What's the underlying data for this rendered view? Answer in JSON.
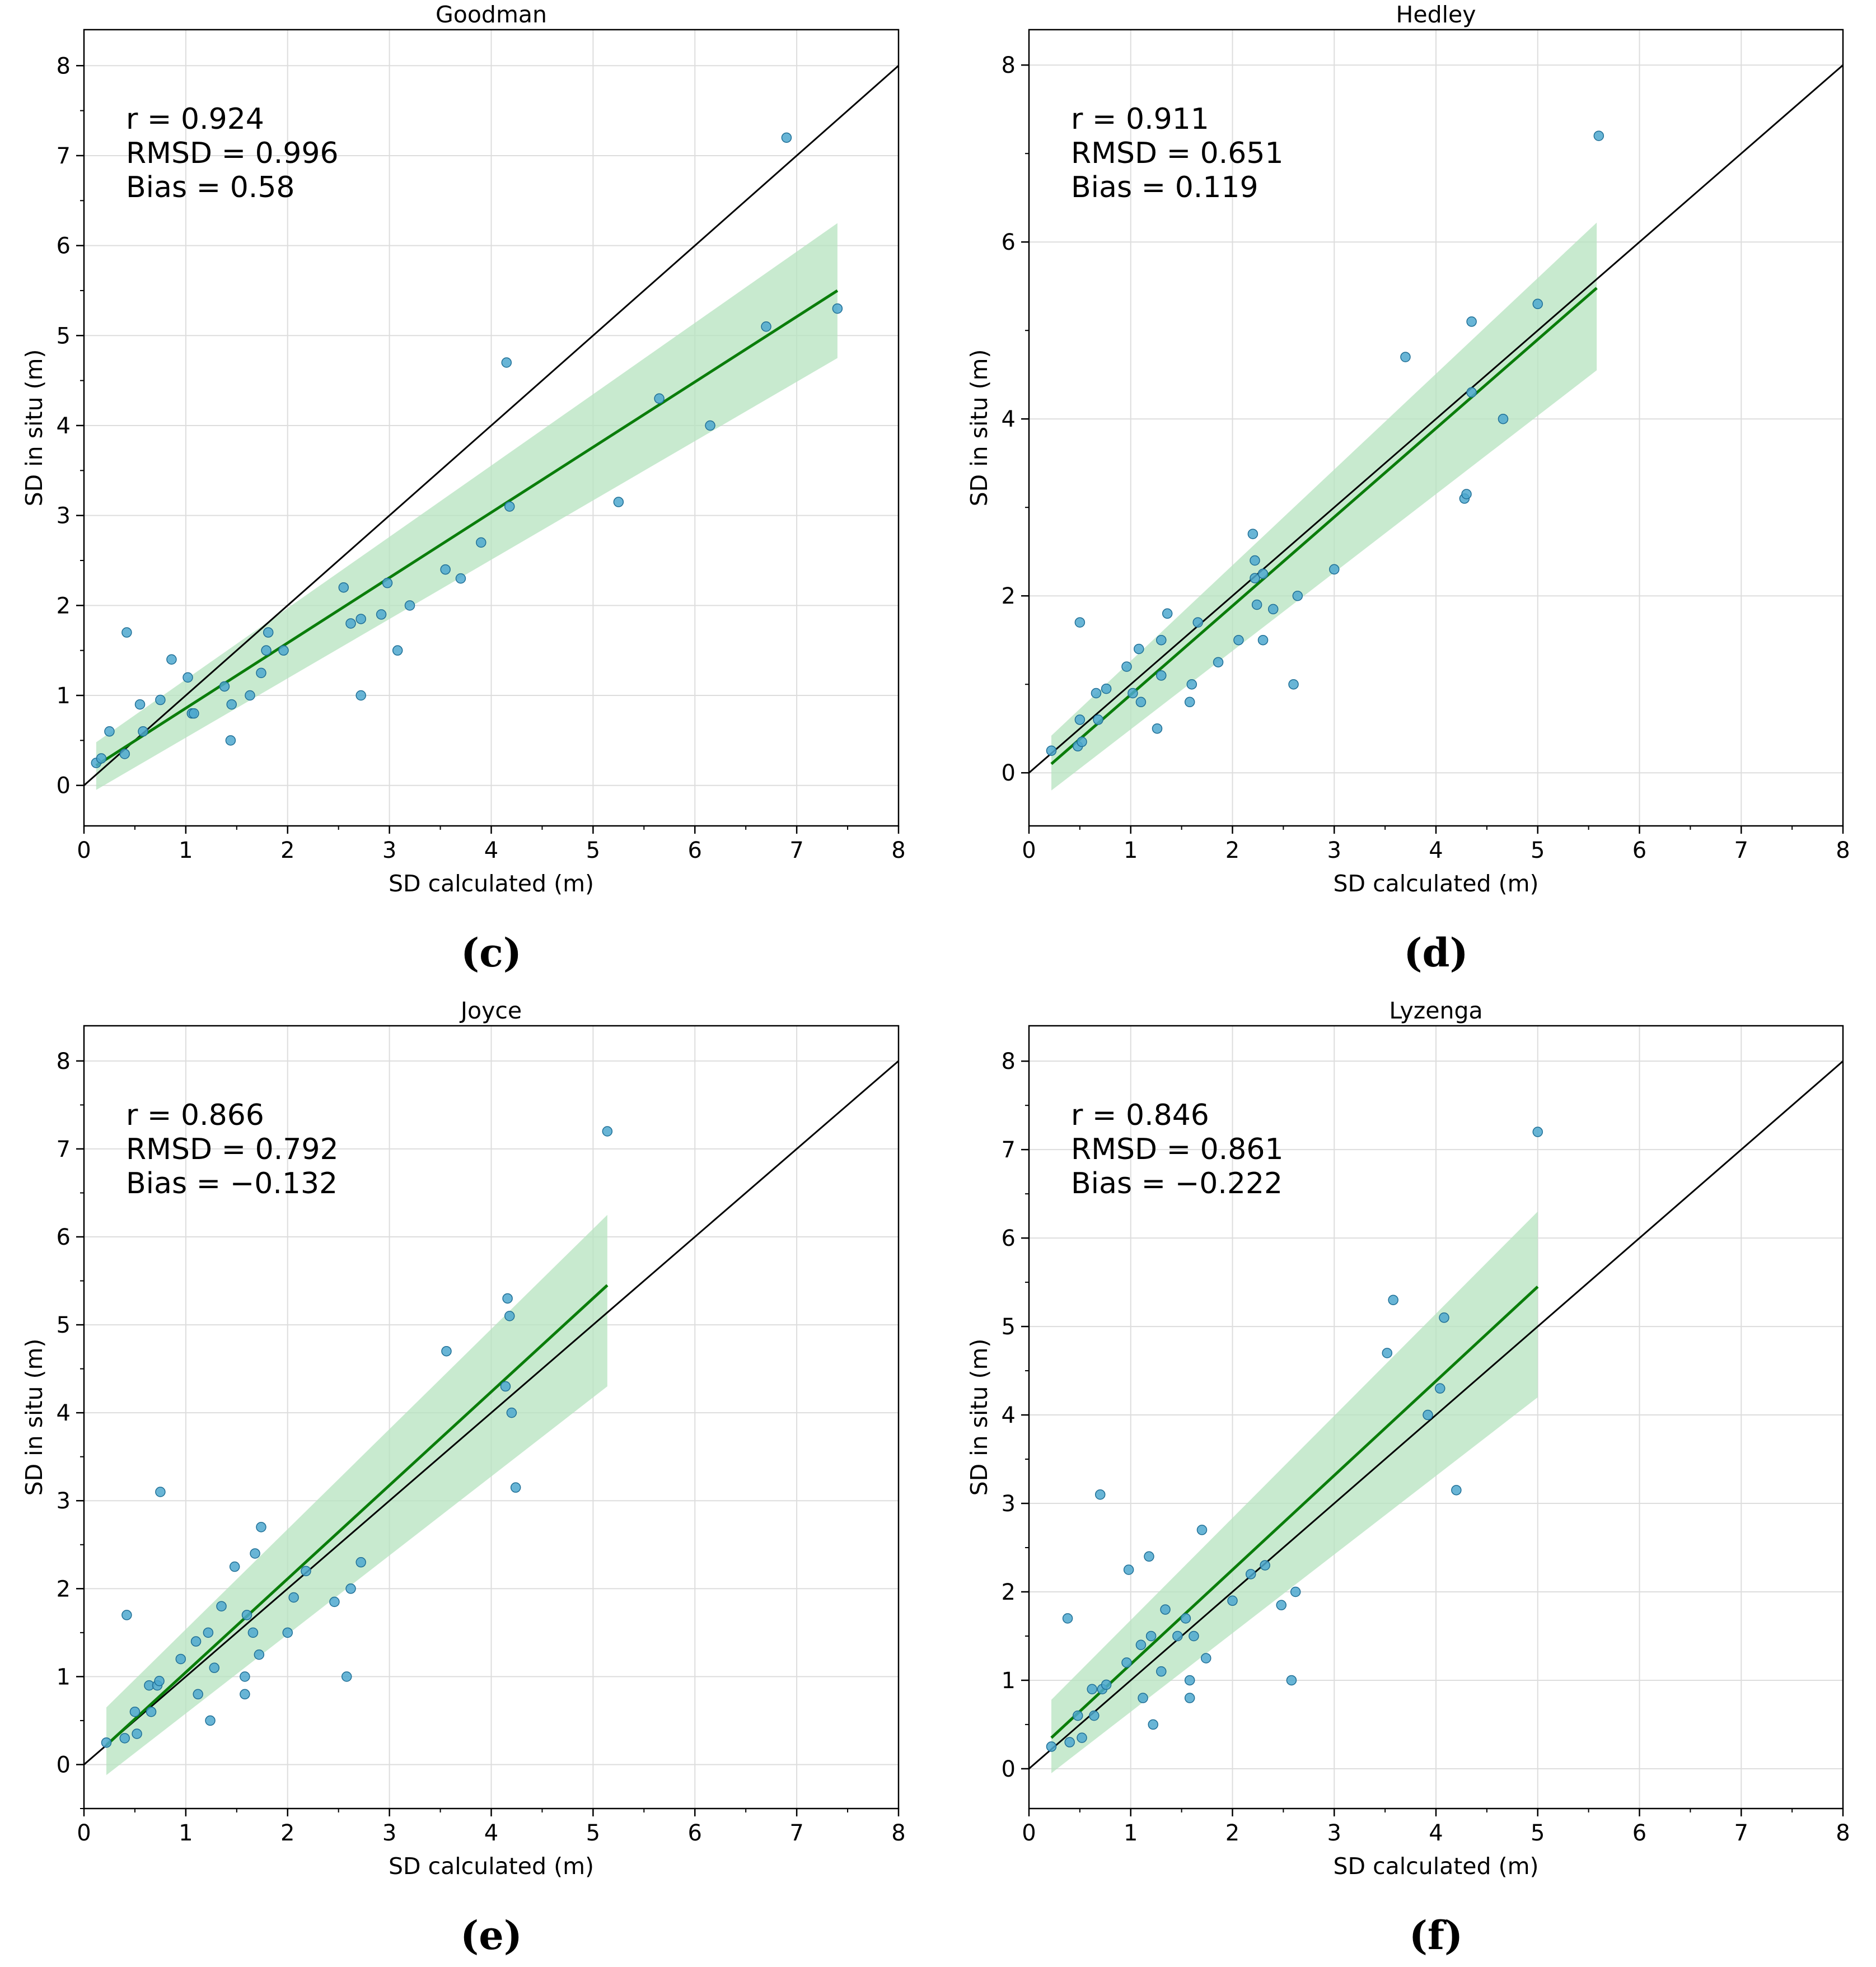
{
  "colors": {
    "point_fill": "#4ea8cf",
    "point_stroke": "#1f6f96",
    "fit_line": "#0a7d0a",
    "confidence_band": "#b5e3bf",
    "identity_line": "#000000",
    "grid": "#dddddd"
  },
  "chart_data": [
    {
      "type": "scatter",
      "title": "Goodman",
      "panel_label": "(c)",
      "xlabel": "SD calculated (m)",
      "ylabel": "SD in situ (m)",
      "xlim": [
        0,
        8
      ],
      "ylim": [
        -0.45,
        8.4
      ],
      "xticks": [
        0,
        1,
        2,
        3,
        4,
        5,
        6,
        7,
        8
      ],
      "yticks": [
        0,
        1,
        2,
        3,
        4,
        5,
        6,
        7,
        8
      ],
      "stats": [
        "r = 0.924",
        "RMSD = 0.996",
        "Bias = 0.58"
      ],
      "x": [
        0.12,
        0.17,
        0.25,
        0.4,
        0.42,
        0.55,
        0.58,
        0.75,
        0.86,
        1.02,
        1.06,
        1.08,
        1.38,
        1.44,
        1.45,
        1.63,
        1.74,
        1.79,
        1.81,
        1.96,
        2.55,
        2.62,
        2.72,
        2.72,
        2.92,
        2.98,
        3.08,
        3.2,
        3.55,
        3.7,
        3.9,
        4.15,
        4.18,
        5.25,
        5.65,
        6.15,
        6.7,
        6.9,
        7.4
      ],
      "y": [
        0.25,
        0.3,
        0.6,
        0.35,
        1.7,
        0.9,
        0.6,
        0.95,
        1.4,
        1.2,
        0.8,
        0.8,
        1.1,
        0.5,
        0.9,
        1.0,
        1.25,
        1.5,
        1.7,
        1.5,
        2.2,
        1.8,
        1.0,
        1.85,
        1.9,
        2.25,
        1.5,
        2.0,
        2.4,
        2.3,
        2.7,
        4.7,
        3.1,
        3.15,
        4.3,
        4.0,
        5.1,
        7.2,
        5.3
      ],
      "fit": {
        "x": [
          0.12,
          7.4
        ],
        "y": [
          0.22,
          5.5
        ]
      },
      "band": {
        "x": [
          0.12,
          7.4
        ],
        "lower": [
          -0.05,
          4.75
        ],
        "upper": [
          0.48,
          6.25
        ]
      }
    },
    {
      "type": "scatter",
      "title": "Hedley",
      "panel_label": "(d)",
      "xlabel": "SD calculated (m)",
      "ylabel": "SD in situ (m)",
      "xlim": [
        0,
        8
      ],
      "ylim": [
        -0.6,
        8.4
      ],
      "xticks": [
        0,
        1,
        2,
        3,
        4,
        5,
        6,
        7,
        8
      ],
      "yticks": [
        0,
        2,
        4,
        6,
        8
      ],
      "stats": [
        "r = 0.911",
        "RMSD = 0.651",
        "Bias = 0.119"
      ],
      "x": [
        0.22,
        0.48,
        0.5,
        0.52,
        0.5,
        0.66,
        0.68,
        0.76,
        0.96,
        1.02,
        1.08,
        1.1,
        1.26,
        1.3,
        1.3,
        1.36,
        1.58,
        1.6,
        1.66,
        1.86,
        2.06,
        2.2,
        2.22,
        2.22,
        2.24,
        2.3,
        2.3,
        2.4,
        2.6,
        2.64,
        3.0,
        3.7,
        4.28,
        4.3,
        4.35,
        4.35,
        4.66,
        5.0,
        5.6
      ],
      "y": [
        0.25,
        0.3,
        0.6,
        0.35,
        1.7,
        0.9,
        0.6,
        0.95,
        1.2,
        0.9,
        1.4,
        0.8,
        0.5,
        1.5,
        1.1,
        1.8,
        0.8,
        1.0,
        1.7,
        1.25,
        1.5,
        2.7,
        2.4,
        2.2,
        1.9,
        2.25,
        1.5,
        1.85,
        1.0,
        2.0,
        2.3,
        4.7,
        3.1,
        3.15,
        4.3,
        5.1,
        4.0,
        5.3,
        7.2
      ],
      "fit": {
        "x": [
          0.22,
          5.58
        ],
        "y": [
          0.1,
          5.48
        ]
      },
      "band": {
        "x": [
          0.22,
          5.58
        ],
        "lower": [
          -0.2,
          4.55
        ],
        "upper": [
          0.42,
          6.22
        ]
      }
    },
    {
      "type": "scatter",
      "title": "Joyce",
      "panel_label": "(e)",
      "xlabel": "SD calculated (m)",
      "ylabel": "SD in situ (m)",
      "xlim": [
        0,
        8
      ],
      "ylim": [
        -0.5,
        8.4
      ],
      "xticks": [
        0,
        1,
        2,
        3,
        4,
        5,
        6,
        7,
        8
      ],
      "yticks": [
        0,
        1,
        2,
        3,
        4,
        5,
        6,
        7,
        8
      ],
      "stats": [
        "r = 0.866",
        "RMSD = 0.792",
        "Bias = −0.132"
      ],
      "x": [
        0.22,
        0.42,
        0.4,
        0.5,
        0.52,
        0.64,
        0.66,
        0.72,
        0.74,
        0.75,
        0.95,
        1.1,
        1.12,
        1.22,
        1.24,
        1.28,
        1.35,
        1.48,
        1.58,
        1.58,
        1.6,
        1.66,
        1.68,
        1.72,
        1.74,
        2.0,
        2.06,
        2.18,
        2.46,
        2.58,
        2.62,
        2.72,
        3.56,
        4.14,
        4.16,
        4.18,
        4.2,
        4.24,
        5.14
      ],
      "y": [
        0.25,
        1.7,
        0.3,
        0.6,
        0.35,
        0.9,
        0.6,
        0.9,
        0.95,
        3.1,
        1.2,
        1.4,
        0.8,
        1.5,
        0.5,
        1.1,
        1.8,
        2.25,
        1.0,
        0.8,
        1.7,
        1.5,
        2.4,
        1.25,
        2.7,
        1.5,
        1.9,
        2.2,
        1.85,
        1.0,
        2.0,
        2.3,
        4.7,
        4.3,
        5.3,
        5.1,
        4.0,
        3.15,
        7.2
      ],
      "fit": {
        "x": [
          0.22,
          5.14
        ],
        "y": [
          0.22,
          5.45
        ]
      },
      "band": {
        "x": [
          0.22,
          5.14
        ],
        "lower": [
          -0.12,
          4.3
        ],
        "upper": [
          0.65,
          6.25
        ]
      }
    },
    {
      "type": "scatter",
      "title": "Lyzenga",
      "panel_label": "(f)",
      "xlabel": "SD calculated (m)",
      "ylabel": "SD in situ (m)",
      "xlim": [
        0,
        8
      ],
      "ylim": [
        -0.45,
        8.4
      ],
      "xticks": [
        0,
        1,
        2,
        3,
        4,
        5,
        6,
        7,
        8
      ],
      "yticks": [
        0,
        1,
        2,
        3,
        4,
        5,
        6,
        7,
        8
      ],
      "stats": [
        "r = 0.846",
        "RMSD = 0.861",
        "Bias = −0.222"
      ],
      "x": [
        0.22,
        0.38,
        0.4,
        0.48,
        0.52,
        0.62,
        0.64,
        0.7,
        0.72,
        0.76,
        0.96,
        0.98,
        1.1,
        1.12,
        1.18,
        1.2,
        1.22,
        1.3,
        1.34,
        1.46,
        1.54,
        1.58,
        1.58,
        1.62,
        1.7,
        1.74,
        2.0,
        2.18,
        2.32,
        2.48,
        2.58,
        2.62,
        3.52,
        3.58,
        3.92,
        4.04,
        4.08,
        4.2,
        5.0
      ],
      "y": [
        0.25,
        1.7,
        0.3,
        0.6,
        0.35,
        0.9,
        0.6,
        3.1,
        0.9,
        0.95,
        1.2,
        2.25,
        1.4,
        0.8,
        2.4,
        1.5,
        0.5,
        1.1,
        1.8,
        1.5,
        1.7,
        1.0,
        0.8,
        1.5,
        2.7,
        1.25,
        1.9,
        2.2,
        2.3,
        1.85,
        1.0,
        2.0,
        4.7,
        5.3,
        4.0,
        4.3,
        5.1,
        3.15,
        7.2
      ],
      "fit": {
        "x": [
          0.22,
          5.0
        ],
        "y": [
          0.35,
          5.45
        ]
      },
      "band": {
        "x": [
          0.22,
          5.0
        ],
        "lower": [
          -0.05,
          4.2
        ],
        "upper": [
          0.78,
          6.3
        ]
      }
    }
  ]
}
